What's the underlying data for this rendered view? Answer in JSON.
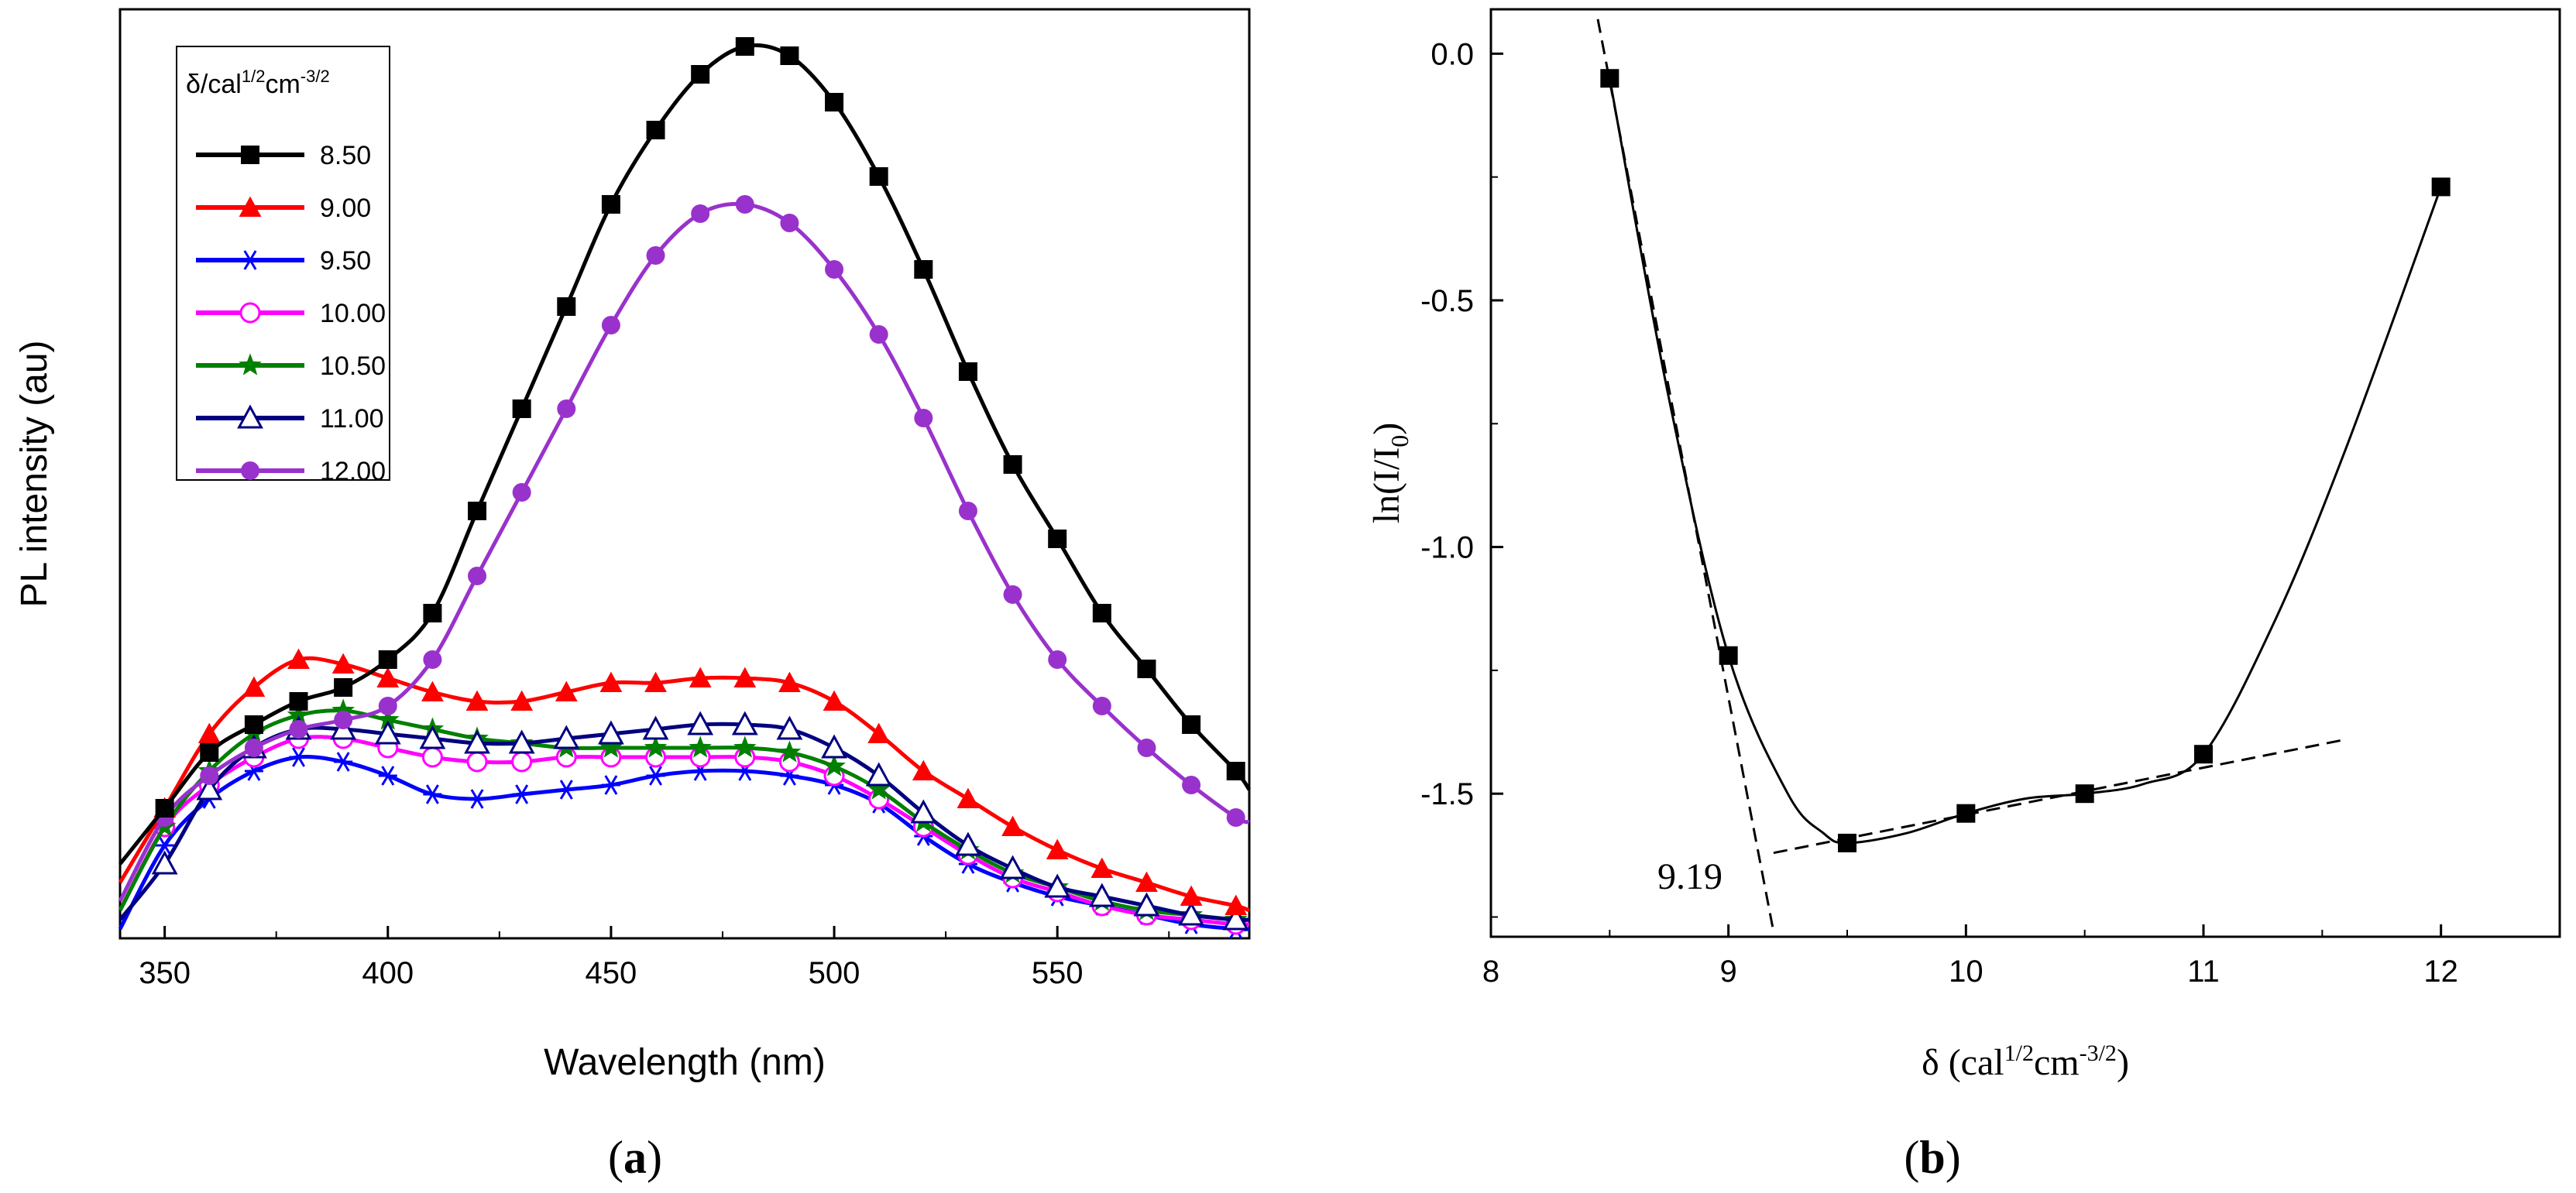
{
  "chart_data": [
    {
      "panel": "a",
      "type": "line",
      "panel_label": "(a)",
      "xlabel": "Wavelength (nm)",
      "ylabel": "PL intensity (au)",
      "xlim": [
        340,
        593
      ],
      "ylim": [
        0,
        100
      ],
      "xticks": [
        350,
        400,
        450,
        500,
        550
      ],
      "legend_title": "δ/cal¹ᐟ²cm⁻³ᐟ²",
      "legend_title_parts": {
        "base": "δ/cal",
        "sup1": "1/2",
        "mid": "cm",
        "sup2": "-3/2"
      },
      "legend_position": "top-left",
      "x": [
        340,
        350,
        360,
        370,
        380,
        390,
        400,
        410,
        420,
        430,
        440,
        450,
        460,
        470,
        480,
        490,
        500,
        510,
        520,
        530,
        540,
        550,
        560,
        570,
        580,
        590,
        593
      ],
      "series": [
        {
          "name": "8.50",
          "color": "#000000",
          "marker": "square",
          "values": [
            8,
            14,
            20,
            23,
            25.5,
            27,
            30,
            35,
            46,
            57,
            68,
            79,
            87,
            93,
            96,
            95,
            90,
            82,
            72,
            61,
            51,
            43,
            35,
            29,
            23,
            18,
            16
          ]
        },
        {
          "name": "9.00",
          "color": "#ff0000",
          "marker": "triangle",
          "values": [
            6,
            14,
            22,
            27,
            30,
            29.5,
            28,
            26.5,
            25.5,
            25.5,
            26.5,
            27.5,
            27.5,
            28,
            28,
            27.5,
            25.5,
            22,
            18,
            15,
            12,
            9.5,
            7.5,
            6,
            4.5,
            3.5,
            3
          ]
        },
        {
          "name": "9.50",
          "color": "#0000ff",
          "marker": "asterisk",
          "values": [
            1,
            10,
            15,
            18,
            19.5,
            19,
            17.5,
            15.5,
            15,
            15.5,
            16,
            16.5,
            17.5,
            18,
            18,
            17.5,
            16.5,
            14.5,
            11,
            8,
            6,
            4.5,
            3.5,
            2.5,
            1.5,
            1,
            1
          ]
        },
        {
          "name": "10.00",
          "color": "#ff00ff",
          "marker": "circle",
          "values": [
            3,
            12,
            16.5,
            19.5,
            21.5,
            21.5,
            20.5,
            19.5,
            19,
            19,
            19.5,
            19.5,
            19.5,
            19.5,
            19.5,
            19,
            17.5,
            15,
            12,
            9,
            6.5,
            5,
            3.5,
            2.5,
            2,
            1.5,
            1.5
          ]
        },
        {
          "name": "10.50",
          "color": "#008000",
          "marker": "star",
          "values": [
            3,
            12,
            18,
            22,
            24,
            24.5,
            23.5,
            22.5,
            21.5,
            21,
            20.5,
            20.5,
            20.5,
            20.5,
            20.5,
            20,
            18.5,
            16,
            12.5,
            9.5,
            7,
            5.5,
            4,
            3,
            2.5,
            2,
            2
          ]
        },
        {
          "name": "11.00",
          "color": "#000080",
          "marker": "triangle-open",
          "values": [
            2,
            8,
            16,
            20.5,
            22.5,
            22.5,
            22,
            21.5,
            21,
            21,
            21.5,
            22,
            22.5,
            23,
            23,
            22.5,
            20.5,
            17.5,
            13.5,
            10,
            7.5,
            5.5,
            4.5,
            3.5,
            2.5,
            2,
            2
          ]
        },
        {
          "name": "12.00",
          "color": "#9932cc",
          "marker": "circle-filled",
          "values": [
            4,
            13,
            17.5,
            20.5,
            22.5,
            23.5,
            25,
            30,
            39,
            48,
            57,
            66,
            73.5,
            78,
            79,
            77,
            72,
            65,
            56,
            46,
            37,
            30,
            25,
            20.5,
            16.5,
            13,
            12.5
          ]
        }
      ]
    },
    {
      "panel": "b",
      "type": "scatter",
      "panel_label": "(b)",
      "xlabel_parts": {
        "base": "δ (cal",
        "sup1": "1/2",
        "mid": "cm",
        "sup2": "-3/2",
        "end": ")"
      },
      "ylabel_parts": {
        "base": "ln(I/I",
        "sub": "0",
        "end": ")"
      },
      "xlim": [
        8,
        12.5
      ],
      "ylim": [
        -1.79,
        0.09
      ],
      "xticks": [
        8,
        9,
        10,
        11,
        12
      ],
      "yticks": [
        0.0,
        -0.5,
        -1.0,
        -1.5
      ],
      "ytick_labels": [
        "0.0",
        "-0.5",
        "-1.0",
        "-1.5"
      ],
      "points": {
        "x": [
          8.5,
          9.0,
          9.5,
          10.0,
          10.5,
          11.0,
          12.0
        ],
        "y": [
          -0.05,
          -1.22,
          -1.6,
          -1.54,
          -1.5,
          -1.42,
          -0.27
        ]
      },
      "fit_curve": {
        "x": [
          8.5,
          8.75,
          9.0,
          9.25,
          9.4,
          9.5,
          9.75,
          10.0,
          10.25,
          10.5,
          10.75,
          11.0,
          11.3,
          11.6,
          12.0
        ],
        "y": [
          -0.05,
          -0.7,
          -1.22,
          -1.5,
          -1.58,
          -1.6,
          -1.58,
          -1.54,
          -1.51,
          -1.5,
          -1.48,
          -1.42,
          -1.15,
          -0.8,
          -0.27
        ]
      },
      "tangent_lines": [
        {
          "x": [
            8.45,
            9.19
          ],
          "y": [
            0.07,
            -1.78
          ]
        },
        {
          "x": [
            9.19,
            11.6
          ],
          "y": [
            -1.62,
            -1.39
          ]
        }
      ],
      "annotation": "9.19"
    }
  ]
}
